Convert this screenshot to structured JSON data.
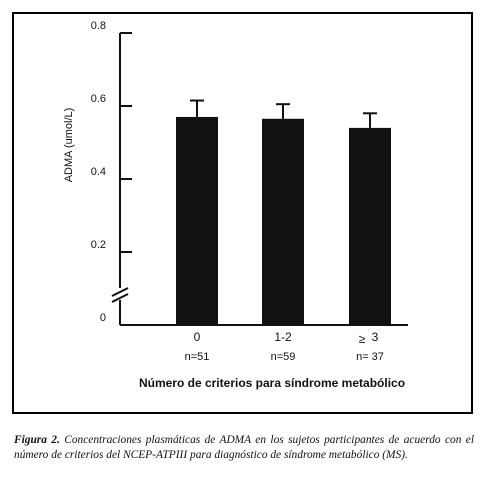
{
  "chart_data": {
    "type": "bar",
    "ylabel": "ADMA (umol/L)",
    "xlabel": "Número de criterios para síndrome metabólico",
    "ylim": [
      0,
      0.8
    ],
    "y_ticks": [
      "0",
      "0.2",
      "0.4",
      "0.6",
      "0.8"
    ],
    "axis_break": true,
    "categories": [
      "0",
      "1-2",
      "≥ 3"
    ],
    "category_n": [
      "n=51",
      "n=59",
      "n= 37"
    ],
    "values": [
      0.57,
      0.565,
      0.54
    ],
    "errors": [
      0.045,
      0.04,
      0.04
    ],
    "bar_color": "#111111",
    "grid": false
  },
  "caption": {
    "figure_label": "Figura 2.",
    "text": " Concentraciones plasmáticas de ADMA en los sujetos participantes de acuerdo con el número de criterios del NCEP-ATPIII para diagnóstico de síndrome metabólico (MS)."
  }
}
